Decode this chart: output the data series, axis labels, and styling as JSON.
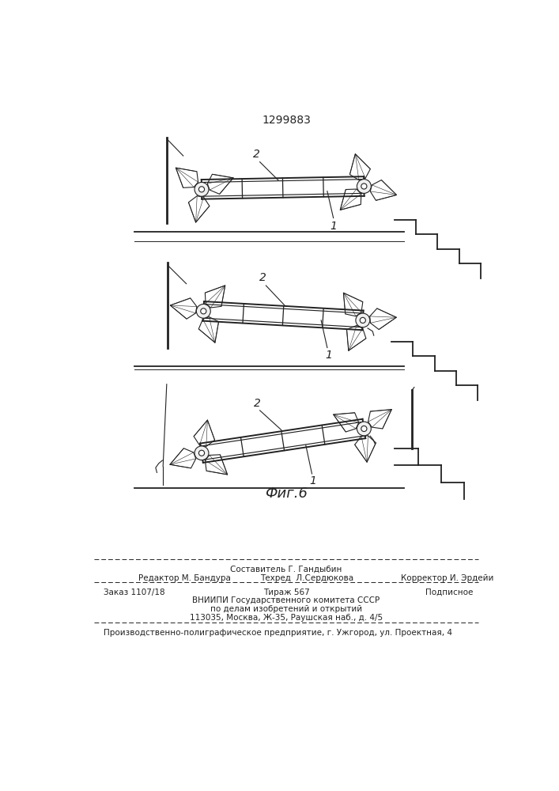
{
  "patent_number": "1299883",
  "fig_caption": "Фиг.6",
  "footer_line1_center": "Составитель Г. Гандыбин",
  "footer_line2_left": "Редактор М. Бандура",
  "footer_line2_mid": "Техред  Л.Сердюкова",
  "footer_line2_right": "Корректор И. Эрдейи",
  "footer_line3_left": "Заказ 1107/18",
  "footer_line3_center": "Тираж 567",
  "footer_line3_right": "Подписное",
  "footer_line4": "ВНИИПИ Государственного комитета СССР",
  "footer_line5": "по делам изобретений и открытий",
  "footer_line6": "113035, Москва, Ж-35, Раушская наб., д. 4/5",
  "footer_last": "Производственно-полиграфическое предприятие, г. Ужгород, ул. Проектная, 4",
  "bg_color": "#ffffff",
  "line_color": "#222222",
  "label_1": "1",
  "label_2": "2"
}
